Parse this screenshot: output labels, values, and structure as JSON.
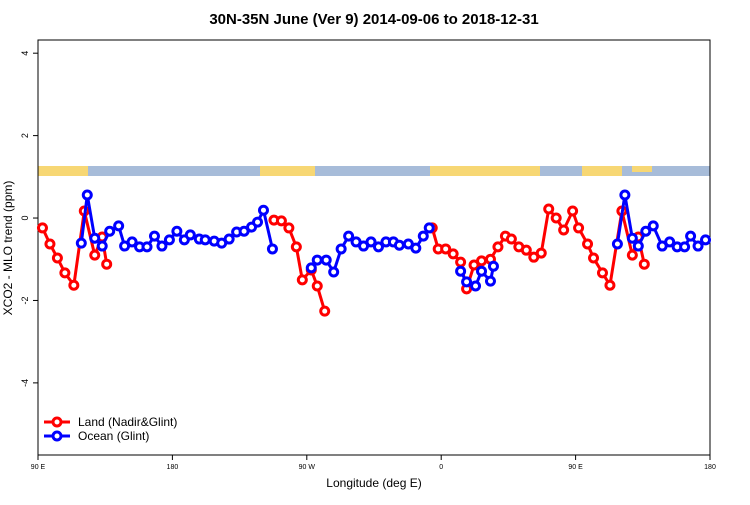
{
  "chart_data": {
    "type": "line",
    "title": "30N-35N June (Ver 9)   2014-09-06 to 2018-12-31",
    "x_label": "Longitude (deg E)",
    "y_label": "XCO2 - MLO trend (ppm)",
    "xlim": [
      90,
      540
    ],
    "xticks": [
      {
        "value": 90,
        "label": "90 E"
      },
      180,
      {
        "value": 270,
        "label": "90 W"
      },
      {
        "value": 360,
        "label": "0"
      },
      {
        "value": 450,
        "label": "90 E"
      },
      {
        "value": 540,
        "label": "180"
      }
    ],
    "ylim": [
      -5.75,
      4.32
    ],
    "yticks": [
      4,
      2,
      0,
      -2,
      -4
    ],
    "legend": "bottom-left",
    "series": [
      {
        "name": "Land (Nadir&Glint)",
        "color": "#ff0000",
        "x": [
          93,
          98,
          103,
          108,
          114,
          121,
          128,
          133,
          136,
          null,
          248,
          253,
          258,
          263,
          267,
          273,
          277,
          282,
          null,
          354,
          358,
          363,
          368,
          373,
          377,
          382,
          387,
          393,
          398,
          403,
          407,
          412,
          417,
          422,
          427,
          432,
          437,
          442,
          448,
          452,
          458,
          462,
          468,
          473,
          481,
          488,
          492,
          496
        ],
        "values": [
          -0.24,
          -0.63,
          -0.97,
          -1.33,
          -1.63,
          0.17,
          -0.9,
          -0.46,
          -1.12,
          null,
          -0.05,
          -0.07,
          -0.24,
          -0.7,
          -1.5,
          -1.26,
          -1.65,
          -2.26,
          null,
          -0.24,
          -0.75,
          -0.75,
          -0.87,
          -1.07,
          -1.72,
          -1.14,
          -1.04,
          -1.0,
          -0.7,
          -0.44,
          -0.51,
          -0.7,
          -0.78,
          -0.95,
          -0.85,
          0.22,
          0.0,
          -0.29,
          0.17,
          -0.24,
          -0.63,
          -0.97,
          -1.33,
          -1.63,
          0.17,
          -0.9,
          -0.46,
          -1.12
        ]
      },
      {
        "name": "Ocean (Glint)",
        "color": "#0000ff",
        "x": [
          119,
          123,
          128,
          133,
          138,
          144,
          148,
          153,
          158,
          163,
          168,
          173,
          178,
          183,
          188,
          192,
          198,
          202,
          208,
          213,
          218,
          223,
          228,
          233,
          237,
          241,
          247,
          null,
          273,
          277,
          283,
          288,
          293,
          298,
          303,
          308,
          313,
          318,
          323,
          328,
          332,
          338,
          343,
          348,
          352,
          null,
          373,
          377,
          383,
          387,
          393,
          395,
          null,
          478,
          483,
          488,
          492,
          497,
          502,
          508,
          513,
          518,
          523,
          527,
          532,
          537
        ],
        "values": [
          -0.61,
          0.56,
          -0.49,
          -0.68,
          -0.32,
          -0.19,
          -0.68,
          -0.58,
          -0.7,
          -0.7,
          -0.44,
          -0.68,
          -0.53,
          -0.32,
          -0.53,
          -0.41,
          -0.51,
          -0.53,
          -0.56,
          -0.61,
          -0.51,
          -0.34,
          -0.32,
          -0.22,
          -0.1,
          0.19,
          -0.75,
          null,
          -1.21,
          -1.02,
          -1.02,
          -1.31,
          -0.75,
          -0.44,
          -0.58,
          -0.68,
          -0.58,
          -0.7,
          -0.58,
          -0.58,
          -0.66,
          -0.63,
          -0.73,
          -0.44,
          -0.24,
          null,
          -1.29,
          -1.55,
          -1.65,
          -1.29,
          -1.53,
          -1.17,
          null,
          -0.63,
          0.56,
          -0.49,
          -0.68,
          -0.32,
          -0.19,
          -0.68,
          -0.58,
          -0.7,
          -0.7,
          -0.44,
          -0.68,
          -0.53
        ]
      }
    ]
  }
}
